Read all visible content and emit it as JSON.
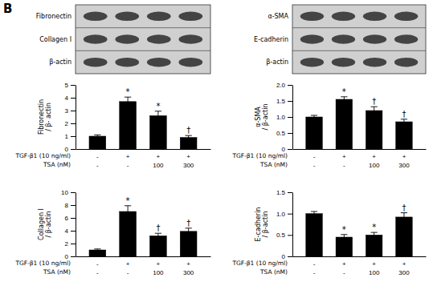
{
  "title": "B",
  "chart_data": [
    {
      "type": "blot",
      "annotations": [
        "Fibronectin",
        "Collagen I",
        "β-actin"
      ]
    },
    {
      "type": "blot",
      "annotations": [
        "α-SMA",
        "E-cadherin",
        "β-actin"
      ]
    },
    {
      "type": "bar",
      "ylabel": "Fibronectin\n/ β- actin",
      "xlabel": [
        "TGF-β1 (10 ng/ml)",
        "TSA (nM)"
      ],
      "categories": [
        [
          "-",
          "-"
        ],
        [
          "+",
          "-"
        ],
        [
          "+",
          "100"
        ],
        [
          "+",
          "300"
        ]
      ],
      "values": [
        1.0,
        3.7,
        2.6,
        0.9
      ],
      "errors": [
        0.1,
        0.35,
        0.35,
        0.15
      ],
      "color": "#000000",
      "ylim": [
        0,
        5
      ],
      "yticks": [
        0,
        1,
        2,
        3,
        4,
        5
      ],
      "annotations": [
        {
          "text": "*",
          "category": 1
        },
        {
          "text": "*",
          "category": 2
        },
        {
          "text": "†",
          "category": 3
        }
      ]
    },
    {
      "type": "bar",
      "ylabel": "Collagen I\n/ β-actin",
      "xlabel": [
        "TGF-β1 (10 ng/ml)",
        "TSA (nM)"
      ],
      "categories": [
        [
          "-",
          "-"
        ],
        [
          "+",
          "-"
        ],
        [
          "+",
          "100"
        ],
        [
          "+",
          "300"
        ]
      ],
      "values": [
        1.0,
        7.0,
        3.2,
        3.9
      ],
      "errors": [
        0.15,
        0.9,
        0.4,
        0.5
      ],
      "color": "#000000",
      "ylim": [
        0,
        10
      ],
      "yticks": [
        0,
        2,
        4,
        6,
        8,
        10
      ],
      "annotations": [
        {
          "text": "*",
          "category": 1
        },
        {
          "text": "†",
          "category": 2
        },
        {
          "text": "†",
          "category": 3
        }
      ]
    },
    {
      "type": "bar",
      "ylabel": "α-SMA\n/ β-actin",
      "xlabel": [
        "TGF-β1 (10 ng/ml)",
        "TSA (nM)"
      ],
      "categories": [
        [
          "-",
          "-"
        ],
        [
          "+",
          "-"
        ],
        [
          "+",
          "100"
        ],
        [
          "+",
          "300"
        ]
      ],
      "values": [
        1.0,
        1.55,
        1.2,
        0.85
      ],
      "errors": [
        0.05,
        0.08,
        0.12,
        0.08
      ],
      "color": "#000000",
      "ylim": [
        0,
        2
      ],
      "yticks": [
        0,
        0.5,
        {
          "value": 1.0,
          "label": "1.0"
        },
        1.5,
        {
          "value": 2.0,
          "label": "2.0"
        }
      ],
      "annotations": [
        {
          "text": "*",
          "category": 1
        },
        {
          "text": "†",
          "category": 2
        },
        {
          "text": "†",
          "category": 3
        }
      ]
    },
    {
      "type": "bar",
      "ylabel": "E-cadherin\n/ β-actin",
      "xlabel": [
        "TGF-β1 (10 ng/ml)",
        "TSA (nM)"
      ],
      "categories": [
        [
          "-",
          "-"
        ],
        [
          "+",
          "-"
        ],
        [
          "+",
          "100"
        ],
        [
          "+",
          "300"
        ]
      ],
      "values": [
        1.0,
        0.45,
        0.5,
        0.92
      ],
      "errors": [
        0.05,
        0.06,
        0.06,
        0.1
      ],
      "color": "#000000",
      "ylim": [
        0,
        1.5
      ],
      "yticks": [
        0,
        0.5,
        {
          "value": 1.0,
          "label": "1.0"
        },
        1.5
      ],
      "annotations": [
        {
          "text": "*",
          "category": 1
        },
        {
          "text": "*",
          "category": 2
        },
        {
          "text": "†",
          "category": 3
        }
      ]
    }
  ]
}
